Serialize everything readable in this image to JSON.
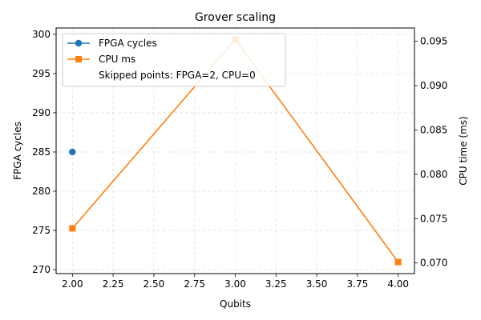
{
  "chart_data": {
    "type": "line",
    "title": "Grover scaling",
    "xlabel": "Qubits",
    "ylabel": "FPGA cycles",
    "y2label": "CPU time (ms)",
    "xlim": [
      1.9,
      4.1
    ],
    "ylim": [
      269.5,
      300.8
    ],
    "y2lim": [
      0.0688,
      0.0965
    ],
    "x_ticks": [
      "2.00",
      "2.25",
      "2.50",
      "2.75",
      "3.00",
      "3.25",
      "3.50",
      "3.75",
      "4.00"
    ],
    "x_tick_values": [
      2.0,
      2.25,
      2.5,
      2.75,
      3.0,
      3.25,
      3.5,
      3.75,
      4.0
    ],
    "y_ticks": [
      "270",
      "275",
      "280",
      "285",
      "290",
      "295",
      "300"
    ],
    "y_tick_values": [
      270,
      275,
      280,
      285,
      290,
      295,
      300
    ],
    "y2_ticks": [
      "0.070",
      "0.075",
      "0.080",
      "0.085",
      "0.090",
      "0.095"
    ],
    "y2_tick_values": [
      0.07,
      0.075,
      0.08,
      0.085,
      0.09,
      0.095
    ],
    "grid": true,
    "legend_position": "top-left",
    "series": [
      {
        "name": "FPGA cycles",
        "axis": "left",
        "marker": "circle",
        "color": "#1f77b4",
        "x": [
          2
        ],
        "y": [
          285
        ]
      },
      {
        "name": "CPU ms",
        "axis": "right",
        "marker": "square",
        "color": "#ff7f0e",
        "x": [
          2,
          3,
          4
        ],
        "y": [
          0.0739,
          0.0952,
          0.0701
        ]
      }
    ],
    "legend_note": "Skipped points: FPGA=2, CPU=0"
  }
}
